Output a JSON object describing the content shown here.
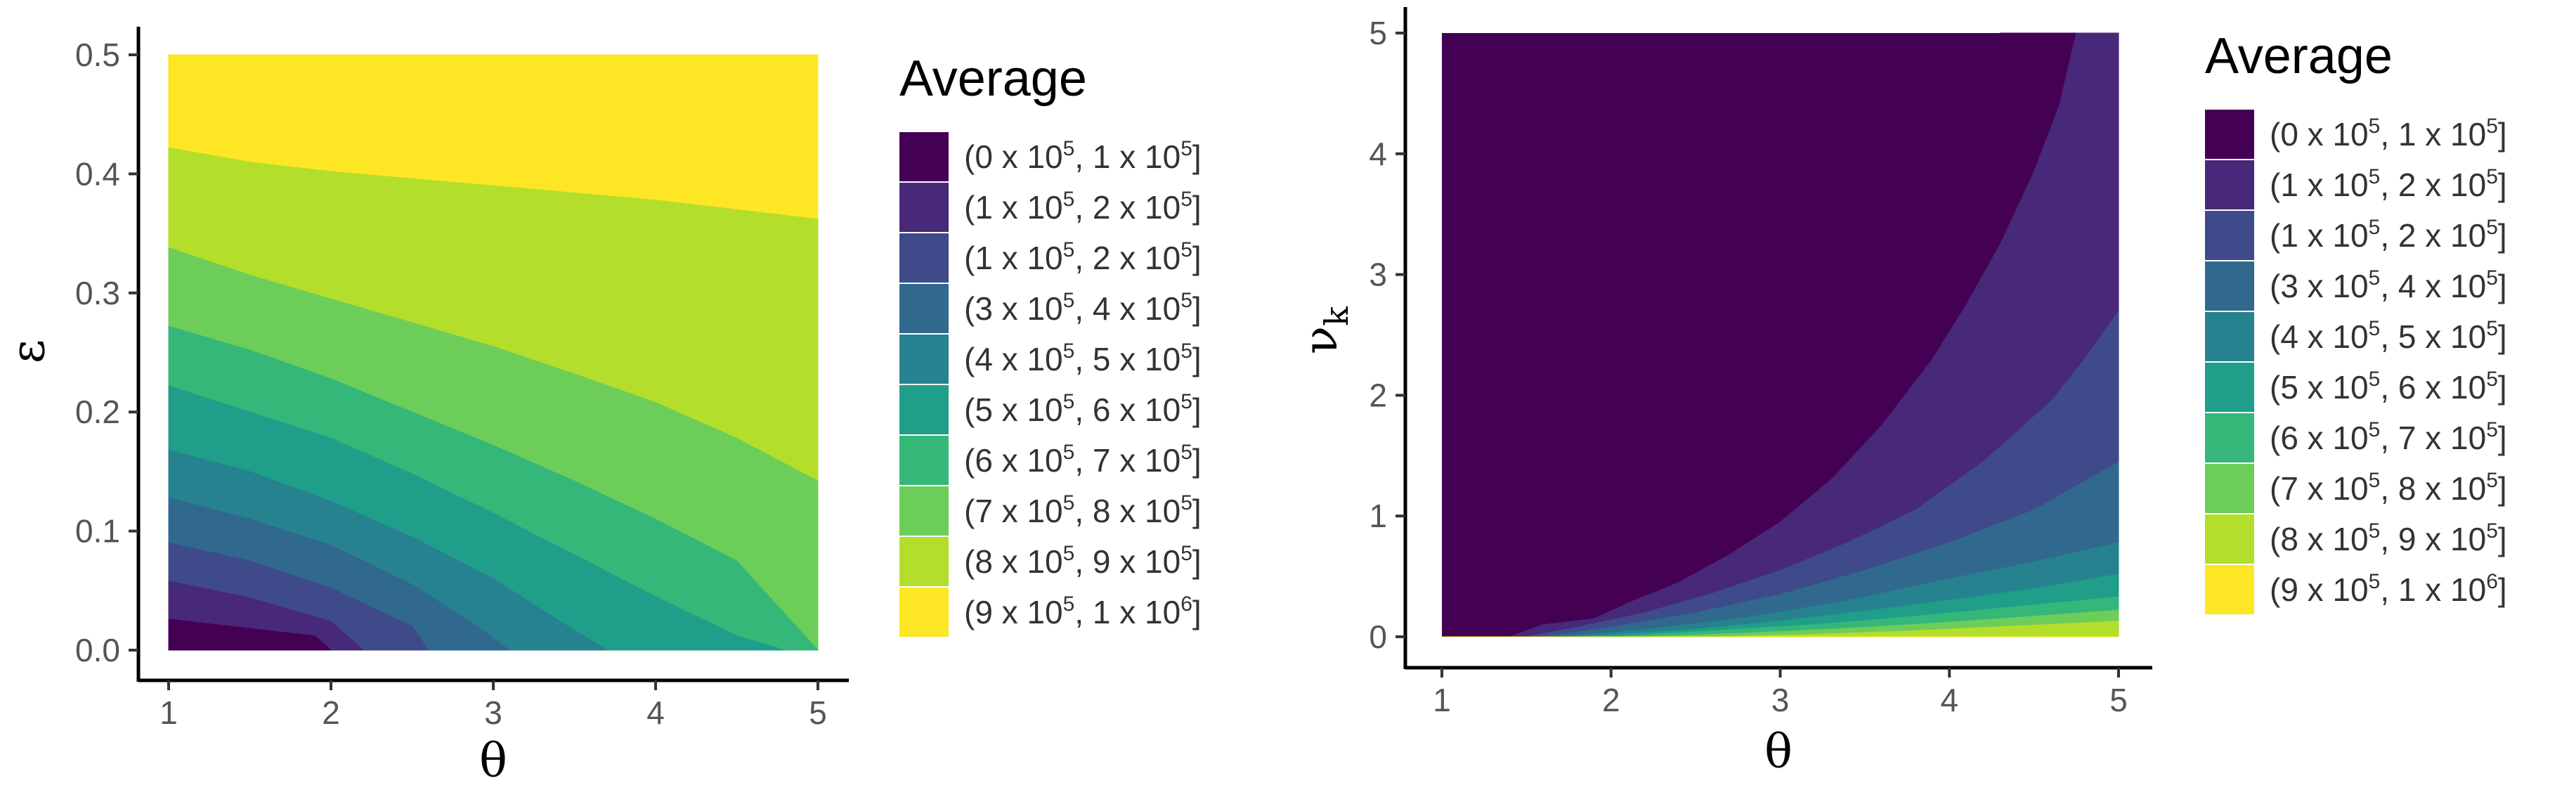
{
  "chart_data": [
    {
      "type": "heatmap",
      "title": "",
      "xlabel": "θ",
      "ylabel": "ε",
      "xlim": [
        1,
        5
      ],
      "ylim": [
        0,
        0.5
      ],
      "xticks": [
        "1",
        "2",
        "3",
        "4",
        "5"
      ],
      "yticks": [
        "0.0",
        "0.1",
        "0.2",
        "0.3",
        "0.4",
        "0.5"
      ],
      "grid": false,
      "legend_position": "right",
      "legend": {
        "title": "Average",
        "entries": [
          [
            "(0 x 10",
            "5",
            ", 1 x 10",
            "5",
            "]"
          ],
          [
            "(1 x 10",
            "5",
            ", 2 x 10",
            "5",
            "]"
          ],
          [
            "(1 x 10",
            "5",
            ", 2 x 10",
            "5",
            "]"
          ],
          [
            "(3 x 10",
            "5",
            ", 4 x 10",
            "5",
            "]"
          ],
          [
            "(4 x 10",
            "5",
            ", 5 x 10",
            "5",
            "]"
          ],
          [
            "(5 x 10",
            "5",
            ", 6 x 10",
            "5",
            "]"
          ],
          [
            "(6 x 10",
            "5",
            ", 7 x 10",
            "5",
            "]"
          ],
          [
            "(7 x 10",
            "5",
            ", 8 x 10",
            "5",
            "]"
          ],
          [
            "(8 x 10",
            "5",
            ", 9 x 10",
            "5",
            "]"
          ],
          [
            "(9 x 10",
            "5",
            ", 1 x 10",
            "6",
            "]"
          ]
        ]
      },
      "levels": [
        {
          "color": "#440154",
          "upper": [
            [
              1,
              0.026
            ],
            [
              1.9,
              0.012
            ],
            [
              2.0,
              0.0
            ]
          ]
        },
        {
          "color": "#482878",
          "upper": [
            [
              1,
              0.058
            ],
            [
              1.5,
              0.044
            ],
            [
              2.0,
              0.024
            ],
            [
              2.2,
              0.0
            ]
          ]
        },
        {
          "color": "#3E4A89",
          "upper": [
            [
              1,
              0.09
            ],
            [
              1.5,
              0.075
            ],
            [
              2.0,
              0.052
            ],
            [
              2.5,
              0.02
            ],
            [
              2.6,
              0.0
            ]
          ]
        },
        {
          "color": "#31688E",
          "upper": [
            [
              1,
              0.128
            ],
            [
              1.5,
              0.11
            ],
            [
              2.0,
              0.088
            ],
            [
              2.5,
              0.055
            ],
            [
              2.9,
              0.02
            ],
            [
              3.1,
              0.0
            ]
          ]
        },
        {
          "color": "#26828E",
          "upper": [
            [
              1,
              0.168
            ],
            [
              1.5,
              0.15
            ],
            [
              2.0,
              0.125
            ],
            [
              2.5,
              0.095
            ],
            [
              3.0,
              0.06
            ],
            [
              3.4,
              0.025
            ],
            [
              3.7,
              0.0
            ]
          ]
        },
        {
          "color": "#1F9E89",
          "upper": [
            [
              1,
              0.222
            ],
            [
              1.5,
              0.2
            ],
            [
              2.0,
              0.178
            ],
            [
              2.5,
              0.148
            ],
            [
              3.0,
              0.115
            ],
            [
              3.5,
              0.08
            ],
            [
              4.0,
              0.045
            ],
            [
              4.5,
              0.012
            ],
            [
              4.8,
              0.0
            ]
          ]
        },
        {
          "color": "#35B779",
          "upper": [
            [
              1,
              0.272
            ],
            [
              1.5,
              0.252
            ],
            [
              2.0,
              0.228
            ],
            [
              2.5,
              0.2
            ],
            [
              3.0,
              0.172
            ],
            [
              3.5,
              0.142
            ],
            [
              4.0,
              0.11
            ],
            [
              4.5,
              0.075
            ],
            [
              5.0,
              0.0
            ]
          ]
        },
        {
          "color": "#6DCD59",
          "upper": [
            [
              1,
              0.338
            ],
            [
              1.5,
              0.315
            ],
            [
              2.0,
              0.295
            ],
            [
              2.5,
              0.275
            ],
            [
              3.0,
              0.255
            ],
            [
              3.5,
              0.232
            ],
            [
              4.0,
              0.208
            ],
            [
              4.5,
              0.178
            ],
            [
              5.0,
              0.142
            ]
          ]
        },
        {
          "color": "#B4DE2C",
          "upper": [
            [
              1,
              0.422
            ],
            [
              1.5,
              0.41
            ],
            [
              2.0,
              0.402
            ],
            [
              3.0,
              0.39
            ],
            [
              4.0,
              0.378
            ],
            [
              5.0,
              0.362
            ]
          ]
        },
        {
          "color": "#FDE725",
          "upper": [
            [
              1,
              0.5
            ],
            [
              5,
              0.5
            ]
          ]
        }
      ]
    },
    {
      "type": "heatmap",
      "title": "",
      "xlabel": "θ",
      "ylabel": "ν",
      "ylabel_sub": "k",
      "xlim": [
        1,
        5
      ],
      "ylim": [
        0,
        5
      ],
      "xticks": [
        "1",
        "2",
        "3",
        "4",
        "5"
      ],
      "yticks": [
        "0",
        "1",
        "2",
        "3",
        "4",
        "5"
      ],
      "grid": false,
      "legend_position": "right",
      "legend": {
        "title": "Average",
        "entries": [
          [
            "(0 x 10",
            "5",
            ", 1 x 10",
            "5",
            "]"
          ],
          [
            "(1 x 10",
            "5",
            ", 2 x 10",
            "5",
            "]"
          ],
          [
            "(1 x 10",
            "5",
            ", 2 x 10",
            "5",
            "]"
          ],
          [
            "(3 x 10",
            "5",
            ", 4 x 10",
            "5",
            "]"
          ],
          [
            "(4 x 10",
            "5",
            ", 5 x 10",
            "5",
            "]"
          ],
          [
            "(5 x 10",
            "5",
            ", 6 x 10",
            "5",
            "]"
          ],
          [
            "(6 x 10",
            "5",
            ", 7 x 10",
            "5",
            "]"
          ],
          [
            "(7 x 10",
            "5",
            ", 8 x 10",
            "5",
            "]"
          ],
          [
            "(8 x 10",
            "5",
            ", 9 x 10",
            "5",
            "]"
          ],
          [
            "(9 x 10",
            "5",
            ", 1 x 10",
            "6",
            "]"
          ]
        ]
      },
      "levels": [
        {
          "color": "#440154",
          "lower": [
            [
              1,
              0
            ],
            [
              1.3,
              0
            ],
            [
              1.5,
              0.1
            ],
            [
              1.8,
              0.15
            ],
            [
              2.0,
              0.3
            ],
            [
              2.2,
              0.42
            ],
            [
              2.5,
              0.65
            ],
            [
              2.8,
              0.95
            ],
            [
              3.0,
              1.25
            ],
            [
              3.2,
              1.65
            ],
            [
              3.4,
              2.1
            ],
            [
              3.6,
              2.65
            ],
            [
              3.75,
              3.15
            ],
            [
              3.9,
              3.55
            ],
            [
              4.05,
              4.0
            ],
            [
              4.2,
              4.55
            ],
            [
              4.3,
              5.0
            ]
          ]
        },
        {
          "color": "#482878",
          "lower": [
            [
              1,
              0
            ],
            [
              1.4,
              0
            ],
            [
              1.6,
              0.1
            ],
            [
              1.9,
              0.15
            ],
            [
              2.1,
              0.28
            ],
            [
              2.4,
              0.45
            ],
            [
              2.7,
              0.68
            ],
            [
              3.0,
              0.95
            ],
            [
              3.3,
              1.3
            ],
            [
              3.6,
              1.75
            ],
            [
              3.9,
              2.3
            ],
            [
              4.1,
              2.75
            ],
            [
              4.3,
              3.25
            ],
            [
              4.5,
              3.85
            ],
            [
              4.65,
              4.4
            ],
            [
              4.75,
              5.0
            ]
          ]
        },
        {
          "color": "#3E4A89",
          "lower": [
            [
              1,
              0
            ],
            [
              1.5,
              0
            ],
            [
              1.8,
              0.08
            ],
            [
              2.2,
              0.2
            ],
            [
              2.6,
              0.36
            ],
            [
              3.0,
              0.55
            ],
            [
              3.4,
              0.78
            ],
            [
              3.8,
              1.05
            ],
            [
              4.2,
              1.45
            ],
            [
              4.6,
              1.95
            ],
            [
              4.8,
              2.3
            ],
            [
              5.0,
              2.7
            ]
          ]
        },
        {
          "color": "#31688E",
          "lower": [
            [
              1,
              0
            ],
            [
              1.6,
              0
            ],
            [
              2.0,
              0.08
            ],
            [
              2.5,
              0.2
            ],
            [
              3.0,
              0.35
            ],
            [
              3.5,
              0.55
            ],
            [
              4.0,
              0.78
            ],
            [
              4.5,
              1.05
            ],
            [
              5.0,
              1.45
            ]
          ]
        },
        {
          "color": "#26828E",
          "lower": [
            [
              1,
              0
            ],
            [
              1.7,
              0
            ],
            [
              2.2,
              0.06
            ],
            [
              2.8,
              0.16
            ],
            [
              3.4,
              0.3
            ],
            [
              4.0,
              0.48
            ],
            [
              4.5,
              0.62
            ],
            [
              5.0,
              0.78
            ]
          ]
        },
        {
          "color": "#1F9E89",
          "lower": [
            [
              1,
              0
            ],
            [
              1.8,
              0
            ],
            [
              2.4,
              0.05
            ],
            [
              3.0,
              0.13
            ],
            [
              3.6,
              0.23
            ],
            [
              4.2,
              0.34
            ],
            [
              4.6,
              0.42
            ],
            [
              5.0,
              0.52
            ]
          ]
        },
        {
          "color": "#35B779",
          "lower": [
            [
              1,
              0
            ],
            [
              2.0,
              0
            ],
            [
              2.6,
              0.05
            ],
            [
              3.2,
              0.1
            ],
            [
              3.8,
              0.17
            ],
            [
              4.4,
              0.25
            ],
            [
              5.0,
              0.33
            ]
          ]
        },
        {
          "color": "#6DCD59",
          "lower": [
            [
              1,
              0
            ],
            [
              2.2,
              0
            ],
            [
              2.8,
              0.03
            ],
            [
              3.4,
              0.07
            ],
            [
              4.0,
              0.12
            ],
            [
              4.5,
              0.17
            ],
            [
              5.0,
              0.22
            ]
          ]
        },
        {
          "color": "#B4DE2C",
          "lower": [
            [
              1,
              0
            ],
            [
              2.6,
              0
            ],
            [
              3.2,
              0.02
            ],
            [
              3.8,
              0.05
            ],
            [
              4.4,
              0.09
            ],
            [
              5.0,
              0.13
            ]
          ]
        },
        {
          "color": "#FDE725",
          "lower": [
            [
              1,
              0
            ],
            [
              5,
              0
            ]
          ]
        }
      ]
    }
  ]
}
